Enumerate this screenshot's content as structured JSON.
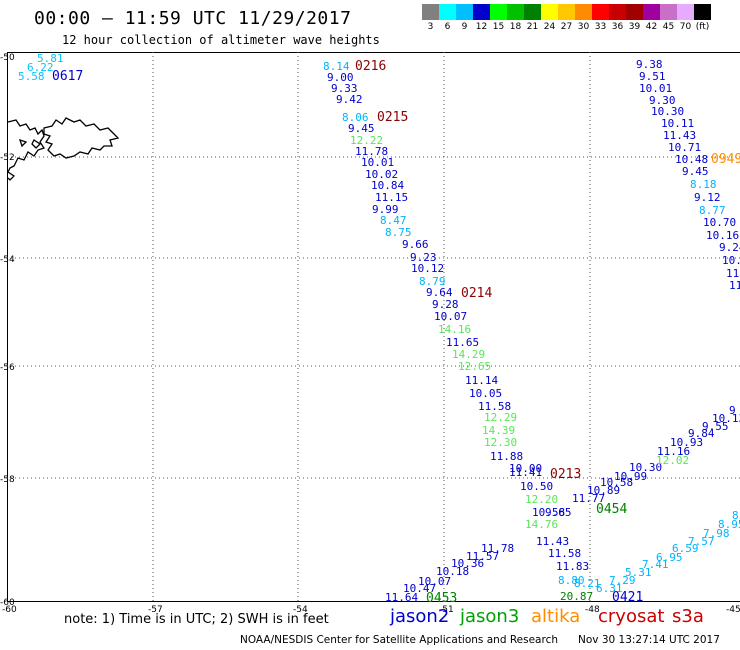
{
  "title": "00:00 – 11:59 UTC 11/29/2017",
  "subtitle": "12 hour collection of altimeter wave heights",
  "color_scale": {
    "colors": [
      "#808080",
      "#00ffff",
      "#00bfff",
      "#0000cd",
      "#00ff00",
      "#00c000",
      "#008000",
      "#ffff00",
      "#ffc800",
      "#ff8c00",
      "#ff0000",
      "#c80000",
      "#a00000",
      "#a000a0",
      "#c870c8",
      "#e6aaff",
      "#000000"
    ],
    "labels": [
      "3",
      "6",
      "9",
      "12",
      "15",
      "18",
      "21",
      "24",
      "27",
      "30",
      "33",
      "36",
      "39",
      "42",
      "45",
      "70",
      "(ft)"
    ]
  },
  "axes": {
    "lat_labels": [
      "-50",
      "-52",
      "-54",
      "-56",
      "-58",
      "-60"
    ],
    "lon_labels": [
      "-60",
      "-57",
      "-54",
      "-51",
      "-48",
      "-45"
    ]
  },
  "tracks": [
    {
      "satellite": "jason2",
      "color": "#0000cd",
      "label": "0617",
      "points": [
        {
          "v": "5.81",
          "c": "#00c8ff"
        },
        {
          "v": "6.22",
          "c": "#00c8ff"
        },
        {
          "v": "5.58",
          "c": "#00c8ff"
        }
      ]
    },
    {
      "satellite": "cryosat",
      "label": "0216",
      "color": "#8b0000",
      "points": [
        {
          "v": "8.14",
          "c": "#00b4ff"
        },
        {
          "v": "9.00",
          "c": "#0000cd"
        },
        {
          "v": "9.33",
          "c": "#0000cd"
        },
        {
          "v": "9.42",
          "c": "#0000cd"
        }
      ]
    },
    {
      "satellite": "cryosat",
      "label": "0215",
      "color": "#8b0000",
      "points": [
        {
          "v": "8.06",
          "c": "#00b4ff"
        },
        {
          "v": "9.45",
          "c": "#0000cd"
        },
        {
          "v": "12.22",
          "c": "#5ae65a"
        },
        {
          "v": "11.78",
          "c": "#0000cd"
        },
        {
          "v": "10.01",
          "c": "#0000cd"
        },
        {
          "v": "10.02",
          "c": "#0000cd"
        },
        {
          "v": "10.84",
          "c": "#0000cd"
        },
        {
          "v": "11.15",
          "c": "#0000cd"
        },
        {
          "v": "9.99",
          "c": "#0000cd"
        },
        {
          "v": "8.47",
          "c": "#00b4ff"
        },
        {
          "v": "8.75",
          "c": "#00b4ff"
        },
        {
          "v": "9.66",
          "c": "#0000cd"
        },
        {
          "v": "9.23",
          "c": "#0000cd"
        },
        {
          "v": "10.12",
          "c": "#0000cd"
        },
        {
          "v": "8.79",
          "c": "#00b4ff"
        },
        {
          "v": "9.64",
          "c": "#0000cd"
        }
      ]
    },
    {
      "satellite": "cryosat",
      "label": "0214",
      "color": "#8b0000",
      "points": [
        {
          "v": "9.28",
          "c": "#0000cd"
        },
        {
          "v": "10.07",
          "c": "#0000cd"
        },
        {
          "v": "14.16",
          "c": "#5ae65a"
        },
        {
          "v": "11.65",
          "c": "#0000cd"
        },
        {
          "v": "14.29",
          "c": "#5ae65a"
        },
        {
          "v": "12.65",
          "c": "#5ae65a"
        },
        {
          "v": "11.14",
          "c": "#0000cd"
        },
        {
          "v": "10.05",
          "c": "#0000cd"
        },
        {
          "v": "11.58",
          "c": "#0000cd"
        },
        {
          "v": "12.29",
          "c": "#5ae65a"
        },
        {
          "v": "14.39",
          "c": "#5ae65a"
        },
        {
          "v": "12.30",
          "c": "#5ae65a"
        },
        {
          "v": "11.88",
          "c": "#0000cd"
        },
        {
          "v": "10.00",
          "c": "#0000cd"
        },
        {
          "v": "11.41",
          "c": "#0000cd"
        },
        {
          "v": "10.50",
          "c": "#0000cd"
        }
      ]
    },
    {
      "satellite": "cryosat",
      "label": "0213",
      "color": "#8b0000",
      "points": [
        {
          "v": "12.20",
          "c": "#5ae65a"
        },
        {
          "v": "10.58",
          "c": "#0000cd"
        },
        {
          "v": "14.76",
          "c": "#5ae65a"
        },
        {
          "v": "11.43",
          "c": "#0000cd"
        },
        {
          "v": "11.58",
          "c": "#0000cd"
        },
        {
          "v": "11.83",
          "c": "#0000cd"
        },
        {
          "v": "8.80",
          "c": "#00b4ff"
        },
        {
          "v": "8.21",
          "c": "#00b4ff"
        },
        {
          "v": "20.87",
          "c": "#008000"
        }
      ]
    },
    {
      "satellite": "jason3",
      "label": "0454",
      "color": "#008000",
      "points": [
        {
          "v": "11.64",
          "c": "#0000cd"
        },
        {
          "v": "10.47",
          "c": "#0000cd"
        },
        {
          "v": "10.07",
          "c": "#0000cd"
        },
        {
          "v": "10.18",
          "c": "#0000cd"
        },
        {
          "v": "10.36",
          "c": "#0000cd"
        },
        {
          "v": "11.57",
          "c": "#0000cd"
        },
        {
          "v": "11.78",
          "c": "#0000cd"
        },
        {
          "v": "9.65",
          "c": "#0000cd"
        },
        {
          "v": "11.77",
          "c": "#0000cd"
        },
        {
          "v": "10.89",
          "c": "#0000cd"
        },
        {
          "v": "10.58",
          "c": "#0000cd"
        },
        {
          "v": "10.99",
          "c": "#0000cd"
        },
        {
          "v": "10.30",
          "c": "#0000cd"
        },
        {
          "v": "12.02",
          "c": "#5ae65a"
        },
        {
          "v": "11.16",
          "c": "#0000cd"
        },
        {
          "v": "10.93",
          "c": "#0000cd"
        },
        {
          "v": "9.84",
          "c": "#0000cd"
        },
        {
          "v": "9.55",
          "c": "#0000cd"
        },
        {
          "v": "10.13",
          "c": "#0000cd"
        },
        {
          "v": "9",
          "c": "#0000cd"
        }
      ]
    },
    {
      "satellite": "jason3",
      "label": "0453",
      "color": "#008000",
      "points": []
    },
    {
      "satellite": "jason2",
      "label": "0421",
      "color": "#0000cd",
      "points": [
        {
          "v": "6.31",
          "c": "#00b4ff"
        },
        {
          "v": "7.29",
          "c": "#00b4ff"
        },
        {
          "v": "5.31",
          "c": "#00b4ff"
        },
        {
          "v": "7.41",
          "c": "#00b4ff"
        },
        {
          "v": "6.95",
          "c": "#00b4ff"
        },
        {
          "v": "6.59",
          "c": "#00b4ff"
        },
        {
          "v": "7.57",
          "c": "#00b4ff"
        },
        {
          "v": "7.98",
          "c": "#00b4ff"
        },
        {
          "v": "8.95",
          "c": "#00b4ff"
        },
        {
          "v": "8",
          "c": "#00b4ff"
        }
      ]
    },
    {
      "satellite": "altika",
      "label": "0949",
      "color": "#ff8c00",
      "points": [
        {
          "v": "9.38",
          "c": "#0000cd"
        },
        {
          "v": "9.51",
          "c": "#0000cd"
        },
        {
          "v": "10.01",
          "c": "#0000cd"
        },
        {
          "v": "9.30",
          "c": "#0000cd"
        },
        {
          "v": "10.30",
          "c": "#0000cd"
        },
        {
          "v": "10.11",
          "c": "#0000cd"
        },
        {
          "v": "11.43",
          "c": "#0000cd"
        },
        {
          "v": "10.71",
          "c": "#0000cd"
        },
        {
          "v": "10.48",
          "c": "#0000cd"
        },
        {
          "v": "9.45",
          "c": "#0000cd"
        },
        {
          "v": "8.18",
          "c": "#00b4ff"
        },
        {
          "v": "9.12",
          "c": "#0000cd"
        },
        {
          "v": "8.77",
          "c": "#00b4ff"
        },
        {
          "v": "10.70",
          "c": "#0000cd"
        },
        {
          "v": "10.16",
          "c": "#0000cd"
        },
        {
          "v": "9.24",
          "c": "#0000cd"
        },
        {
          "v": "10.0",
          "c": "#0000cd"
        },
        {
          "v": "11.",
          "c": "#0000cd"
        },
        {
          "v": "11",
          "c": "#0000cd"
        }
      ]
    }
  ],
  "note": "note:  1) Time is in UTC; 2) SWH is in feet",
  "legend": {
    "jason2": "jason2",
    "jason3": "jason3",
    "altika": "altika",
    "cryosat": "cryosat",
    "s3a": "s3a"
  },
  "credit": "NOAA/NESDIS Center for Satellite Applications and Research",
  "timestamp": "Nov 30 13:27:14 UTC 2017"
}
